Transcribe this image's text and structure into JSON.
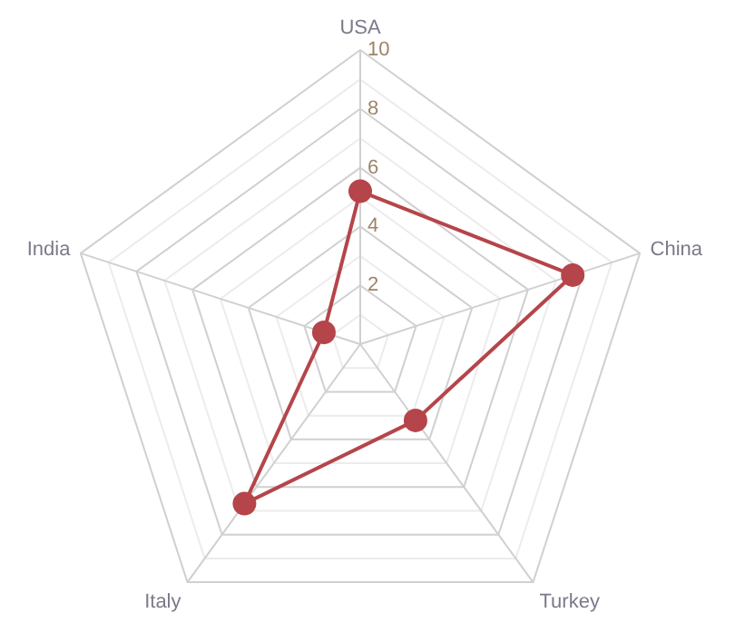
{
  "chart_data": {
    "type": "radar",
    "categories": [
      "USA",
      "China",
      "Turkey",
      "Italy",
      "India"
    ],
    "series": [
      {
        "color": "#b5454a",
        "values": [
          5.2,
          7.6,
          3.2,
          6.7,
          1.3
        ]
      }
    ],
    "ylim": [
      0,
      10
    ],
    "yticks": [
      2,
      4,
      6,
      8,
      10
    ],
    "grid": true,
    "marker": "circle",
    "line_style": "solid"
  }
}
